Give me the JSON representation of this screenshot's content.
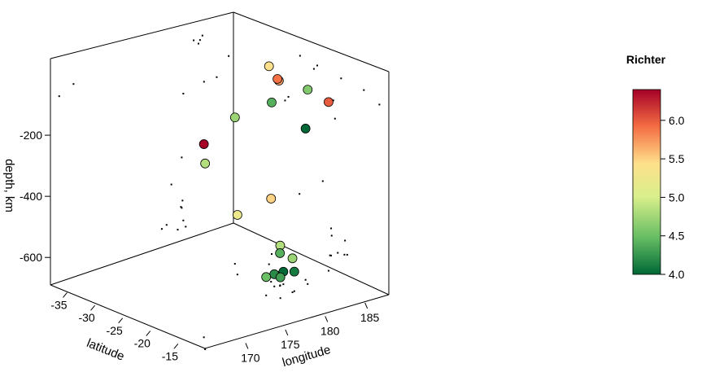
{
  "chart_data": {
    "type": "scatter3d",
    "title": "",
    "color_variable": "Richter",
    "x_axis": {
      "label": "longitude",
      "ticks": [
        185,
        180,
        175,
        170
      ],
      "range": [
        165,
        188
      ]
    },
    "y_axis": {
      "label": "latitude",
      "ticks": [
        -35,
        -30,
        -25,
        -20,
        -15
      ],
      "range": [
        -38,
        -10
      ]
    },
    "z_axis": {
      "label": "depth, km",
      "ticks": [
        -200,
        -400,
        -600
      ],
      "range": [
        -690,
        0
      ]
    },
    "projections": "black points on back walls and floor",
    "colorbar": {
      "title": "Richter",
      "range": [
        4.0,
        6.4
      ],
      "ticks": [
        "4.0",
        "4.5",
        "5.0",
        "5.5",
        "6.0"
      ],
      "colors": [
        "#006837",
        "#66bd63",
        "#d9ef8b",
        "#fee08b",
        "#f46d43",
        "#a50026"
      ]
    },
    "points": [
      {
        "lon": 181.6,
        "lat": -20.4,
        "depth": -560,
        "mag": 4.8
      },
      {
        "lon": 181.0,
        "lat": -20.6,
        "depth": -650,
        "mag": 4.2
      },
      {
        "lon": 184.1,
        "lat": -26.0,
        "depth": -42,
        "mag": 5.4
      },
      {
        "lon": 181.7,
        "lat": -18.0,
        "depth": -626,
        "mag": 4.1
      },
      {
        "lon": 182.0,
        "lat": -20.4,
        "depth": -649,
        "mag": 4.0
      },
      {
        "lon": 184.3,
        "lat": -19.7,
        "depth": -195,
        "mag": 4.0
      },
      {
        "lon": 166.1,
        "lat": -11.7,
        "depth": -82,
        "mag": 4.8
      },
      {
        "lon": 185.9,
        "lat": -28.1,
        "depth": -194,
        "mag": 4.4
      },
      {
        "lon": 181.7,
        "lat": -28.7,
        "depth": -211,
        "mag": 4.7
      },
      {
        "lon": 179.6,
        "lat": -17.5,
        "depth": -622,
        "mag": 4.3
      },
      {
        "lon": 181.5,
        "lat": -20.3,
        "depth": -583,
        "mag": 4.4
      },
      {
        "lon": 183.8,
        "lat": -18.6,
        "depth": -54,
        "mag": 4.6
      },
      {
        "lon": 187.4,
        "lat": -20.0,
        "depth": -138,
        "mag": 6.0
      },
      {
        "lon": 181.5,
        "lat": -21.9,
        "depth": -418,
        "mag": 5.5
      },
      {
        "lon": 183.6,
        "lat": -23.5,
        "depth": -64,
        "mag": 5.7
      },
      {
        "lon": 167.9,
        "lat": -14.5,
        "depth": -58,
        "mag": 6.4
      },
      {
        "lon": 183.0,
        "lat": -22.9,
        "depth": -48,
        "mag": 5.9
      },
      {
        "lon": 181.4,
        "lat": -17.9,
        "depth": -579,
        "mag": 4.7
      },
      {
        "lon": 180.2,
        "lat": -26.1,
        "depth": -495,
        "mag": 5.2
      },
      {
        "lon": 179.0,
        "lat": -19.2,
        "depth": -630,
        "mag": 4.5
      }
    ]
  }
}
